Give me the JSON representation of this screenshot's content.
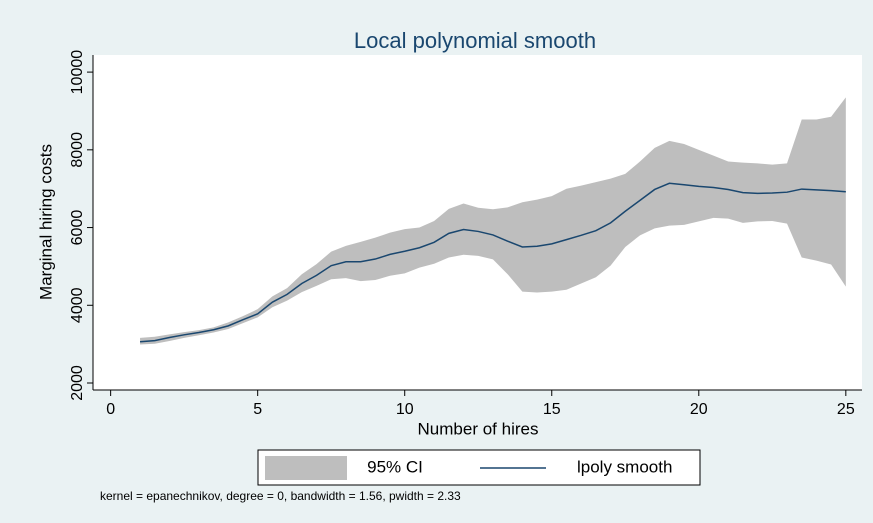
{
  "chart_data": {
    "type": "line",
    "title": "Local polynomial smooth",
    "x_label": "Number of hires",
    "y_label": "Marginal hiring costs",
    "note": "kernel = epanechnikov, degree = 0, bandwidth = 1.56, pwidth = 2.33",
    "x": [
      1,
      1.5,
      2,
      2.5,
      3,
      3.5,
      4,
      4.5,
      5,
      5.5,
      6,
      6.5,
      7,
      7.5,
      8,
      8.5,
      9,
      9.5,
      10,
      10.5,
      11,
      11.5,
      12,
      12.5,
      13,
      13.5,
      14,
      14.5,
      15,
      15.5,
      16,
      16.5,
      17,
      17.5,
      18,
      18.5,
      19,
      19.5,
      20,
      20.5,
      21,
      21.5,
      22,
      22.5,
      23,
      23.5,
      24,
      24.5,
      25
    ],
    "series": [
      {
        "name": "95% CI",
        "color": "#bebebe",
        "upper": [
          3160,
          3190,
          3250,
          3310,
          3360,
          3430,
          3560,
          3720,
          3900,
          4230,
          4440,
          4800,
          5060,
          5380,
          5530,
          5630,
          5740,
          5870,
          5960,
          6000,
          6170,
          6480,
          6620,
          6510,
          6470,
          6520,
          6650,
          6720,
          6810,
          7000,
          7080,
          7170,
          7260,
          7380,
          7700,
          8050,
          8230,
          8150,
          8000,
          7850,
          7700,
          7670,
          7650,
          7620,
          7650,
          8780,
          8780,
          8850,
          9350
        ],
        "lower": [
          2990,
          3010,
          3080,
          3160,
          3230,
          3300,
          3390,
          3540,
          3690,
          3950,
          4120,
          4340,
          4500,
          4670,
          4700,
          4620,
          4650,
          4760,
          4820,
          4970,
          5070,
          5230,
          5300,
          5270,
          5180,
          4800,
          4350,
          4330,
          4350,
          4400,
          4560,
          4720,
          5020,
          5500,
          5800,
          5980,
          6050,
          6070,
          6160,
          6250,
          6230,
          6120,
          6160,
          6170,
          6100,
          5230,
          5150,
          5050,
          4480
        ]
      },
      {
        "name": "lpoly smooth",
        "color": "#1a476f",
        "values": [
          3060,
          3090,
          3170,
          3240,
          3300,
          3370,
          3470,
          3630,
          3780,
          4080,
          4280,
          4560,
          4770,
          5020,
          5120,
          5120,
          5190,
          5310,
          5390,
          5480,
          5620,
          5850,
          5950,
          5900,
          5810,
          5650,
          5500,
          5520,
          5580,
          5690,
          5800,
          5920,
          6120,
          6420,
          6700,
          6980,
          7140,
          7100,
          7060,
          7030,
          6980,
          6900,
          6880,
          6890,
          6910,
          6990,
          6970,
          6950,
          6920
        ]
      }
    ],
    "xlim": [
      -0.6,
      25.55
    ],
    "ylim": [
      1820,
      10440
    ],
    "xticks": [
      0,
      5,
      10,
      15,
      20,
      25
    ],
    "yticks": [
      2000,
      4000,
      6000,
      8000,
      10000
    ]
  }
}
